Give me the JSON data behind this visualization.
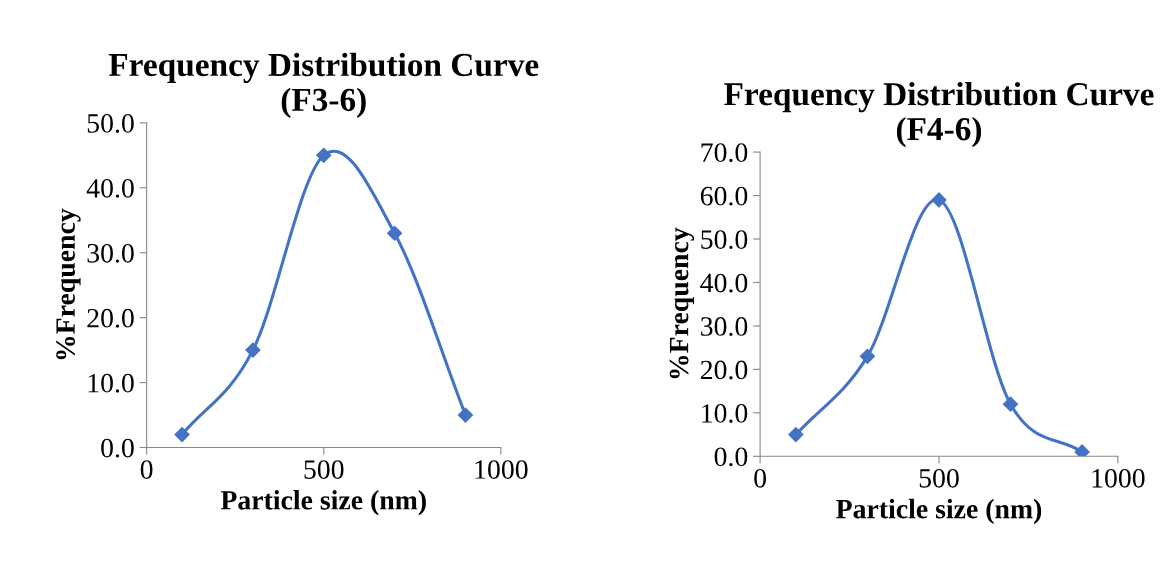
{
  "chart_data": [
    {
      "type": "line",
      "title": "Frequency Distribution Curve (F3-6)",
      "xlabel": "Particle size (nm)",
      "ylabel": "%Frequency",
      "x": [
        100,
        300,
        500,
        700,
        900
      ],
      "series": [
        {
          "color": "#4472c4",
          "values": [
            2,
            15,
            45,
            33,
            5
          ]
        }
      ],
      "marker": "diamond",
      "line_style": "solid",
      "grid": false,
      "legend": false,
      "xlim": [
        0,
        1000
      ],
      "xticks": [
        0,
        500,
        1000
      ],
      "ylim": [
        0,
        50
      ],
      "yticks": [
        {
          "value": 0,
          "label": "0.0"
        },
        {
          "value": 10,
          "label": "10.0"
        },
        {
          "value": 20,
          "label": "20.0"
        },
        {
          "value": 30,
          "label": "30.0"
        },
        {
          "value": 40,
          "label": "40.0"
        },
        {
          "value": 50,
          "label": "50.0"
        }
      ]
    },
    {
      "type": "line",
      "title": "Frequency Distribution Curve (F4-6)",
      "xlabel": "Particle size (nm)",
      "ylabel": "%Frequency",
      "x": [
        100,
        300,
        500,
        700,
        900
      ],
      "series": [
        {
          "color": "#4472c4",
          "values": [
            5,
            23,
            59,
            12,
            1
          ]
        }
      ],
      "marker": "diamond",
      "line_style": "solid",
      "grid": false,
      "legend": false,
      "xlim": [
        0,
        1000
      ],
      "xticks": [
        0,
        500,
        1000
      ],
      "ylim": [
        0,
        70
      ],
      "yticks": [
        {
          "value": 0,
          "label": "0.0"
        },
        {
          "value": 10,
          "label": "10.0"
        },
        {
          "value": 20,
          "label": "20.0"
        },
        {
          "value": 30,
          "label": "30.0"
        },
        {
          "value": 40,
          "label": "40.0"
        },
        {
          "value": 50,
          "label": "50.0"
        },
        {
          "value": 60,
          "label": "60.0"
        },
        {
          "value": 70,
          "label": "70.0"
        }
      ]
    }
  ]
}
